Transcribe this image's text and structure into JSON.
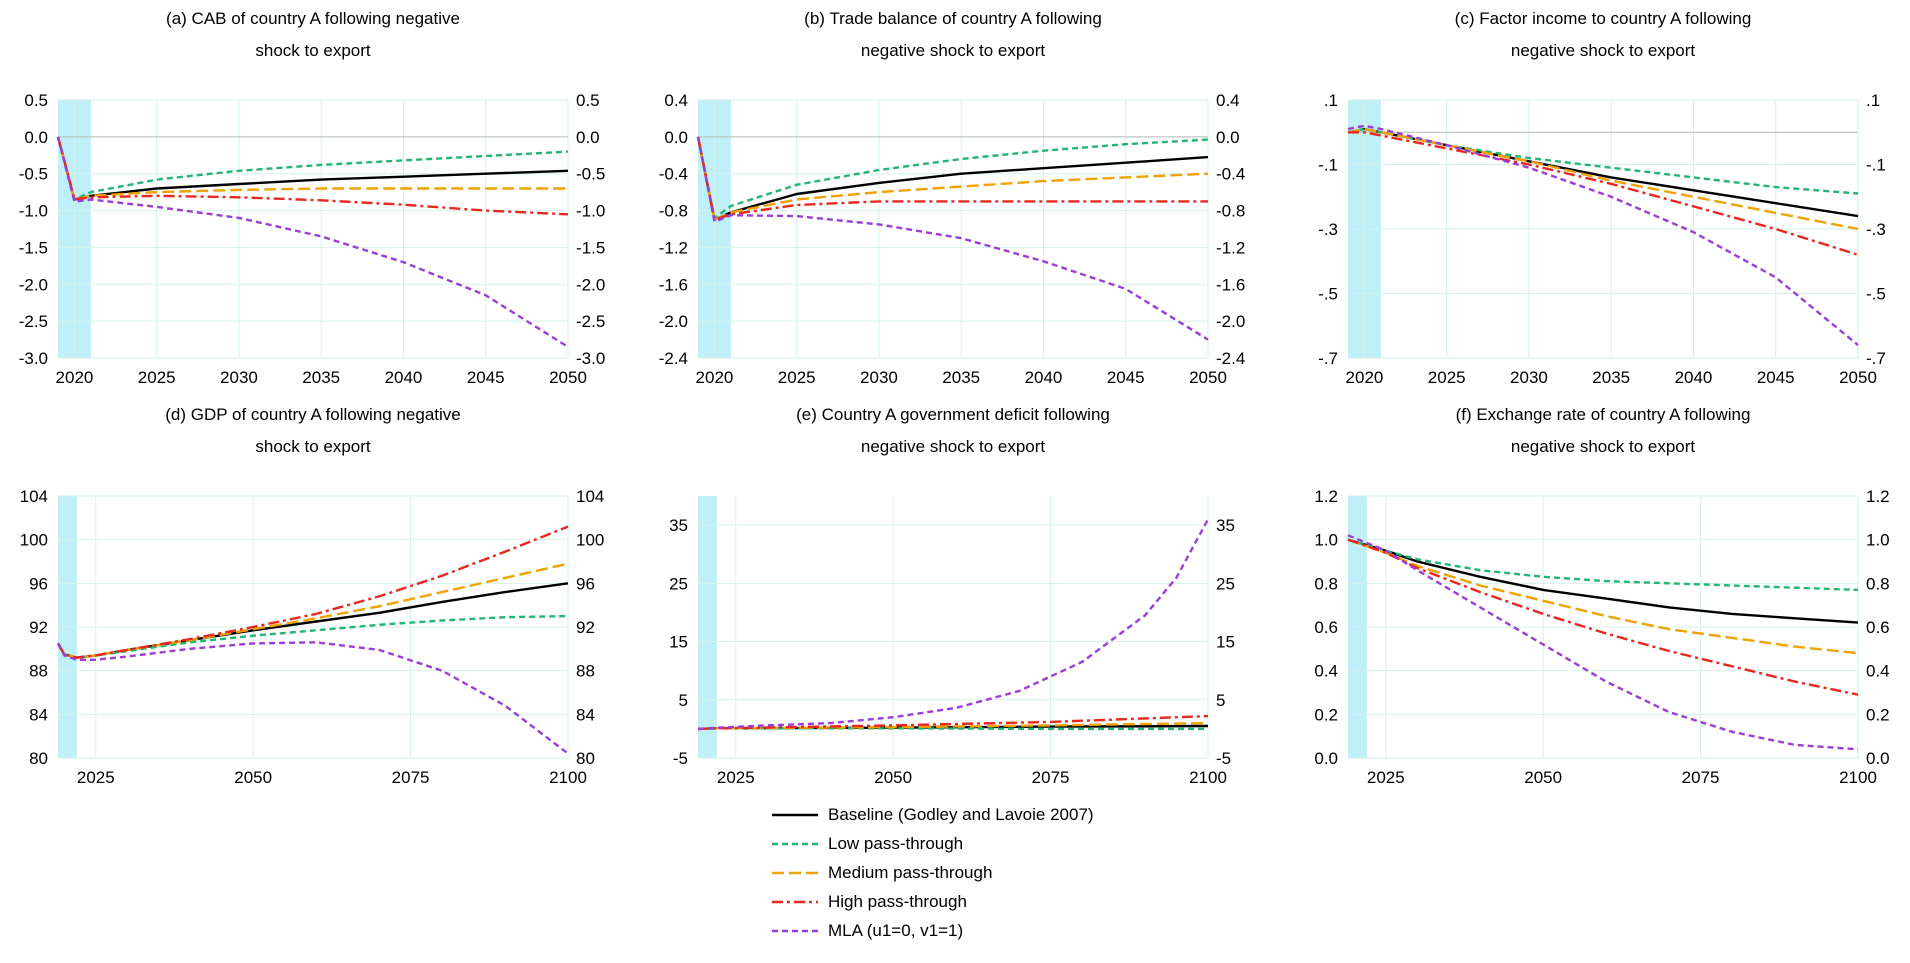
{
  "legend": [
    {
      "name": "Baseline (Godley and Lavoie 2007)",
      "color": "#000000",
      "dash": "solid"
    },
    {
      "name": "Low pass-through",
      "color": "#22b573",
      "dash": "short"
    },
    {
      "name": "Medium pass-through",
      "color": "#f0a202",
      "dash": "long"
    },
    {
      "name": "High pass-through",
      "color": "#e8281e",
      "dash": "dashdot"
    },
    {
      "name": "MLA (u1=0, v1=1)",
      "color": "#9b3dd8",
      "dash": "short"
    }
  ],
  "shading_color": "#bff0f8",
  "chart_data": [
    {
      "type": "line",
      "title": "(a) CAB of country A following negative shock to export",
      "title_lines": [
        "(a) CAB of country A following negative",
        "shock to export"
      ],
      "xlim": [
        2019,
        2050
      ],
      "ylim": [
        -3.0,
        0.5
      ],
      "xticks": [
        "2020",
        "2025",
        "2030",
        "2035",
        "2040",
        "2045",
        "2050"
      ],
      "yticks": [
        "0.5",
        "0.0",
        "-0.5",
        "-1.0",
        "-1.5",
        "-2.0",
        "-2.5",
        "-3.0"
      ],
      "shaded_x": [
        2019,
        2021
      ],
      "zero_line": 0,
      "series": [
        {
          "name": "Baseline (Godley and Lavoie 2007)",
          "x": [
            2019,
            2020,
            2021,
            2025,
            2030,
            2035,
            2040,
            2045,
            2050
          ],
          "y": [
            0.0,
            -0.85,
            -0.8,
            -0.7,
            -0.64,
            -0.58,
            -0.54,
            -0.5,
            -0.46
          ]
        },
        {
          "name": "Low pass-through",
          "x": [
            2019,
            2020,
            2021,
            2025,
            2030,
            2035,
            2040,
            2045,
            2050
          ],
          "y": [
            0.0,
            -0.85,
            -0.75,
            -0.58,
            -0.46,
            -0.38,
            -0.32,
            -0.26,
            -0.2
          ]
        },
        {
          "name": "Medium pass-through",
          "x": [
            2019,
            2020,
            2021,
            2025,
            2030,
            2035,
            2040,
            2045,
            2050
          ],
          "y": [
            0.0,
            -0.85,
            -0.8,
            -0.75,
            -0.72,
            -0.7,
            -0.7,
            -0.7,
            -0.7
          ]
        },
        {
          "name": "High pass-through",
          "x": [
            2019,
            2020,
            2021,
            2025,
            2030,
            2035,
            2040,
            2045,
            2050
          ],
          "y": [
            0.0,
            -0.85,
            -0.82,
            -0.8,
            -0.82,
            -0.86,
            -0.92,
            -1.0,
            -1.05
          ]
        },
        {
          "name": "MLA (u1=0, v1=1)",
          "x": [
            2019,
            2020,
            2021,
            2025,
            2030,
            2035,
            2040,
            2045,
            2050
          ],
          "y": [
            0.0,
            -0.88,
            -0.85,
            -0.95,
            -1.1,
            -1.35,
            -1.7,
            -2.15,
            -2.85
          ]
        }
      ]
    },
    {
      "type": "line",
      "title": "(b) Trade balance of country A following negative shock to export",
      "title_lines": [
        "(b) Trade balance of country A following",
        "negative shock to export"
      ],
      "xlim": [
        2019,
        2050
      ],
      "ylim": [
        -2.4,
        0.4
      ],
      "xticks": [
        "2020",
        "2025",
        "2030",
        "2035",
        "2040",
        "2045",
        "2050"
      ],
      "yticks": [
        "0.4",
        "0.0",
        "-0.4",
        "-0.8",
        "-1.2",
        "-1.6",
        "-2.0",
        "-2.4"
      ],
      "shaded_x": [
        2019,
        2021
      ],
      "zero_line": 0,
      "series": [
        {
          "name": "Baseline (Godley and Lavoie 2007)",
          "x": [
            2019,
            2020,
            2021,
            2025,
            2030,
            2035,
            2040,
            2045,
            2050
          ],
          "y": [
            0.0,
            -0.9,
            -0.82,
            -0.62,
            -0.5,
            -0.4,
            -0.34,
            -0.28,
            -0.22
          ]
        },
        {
          "name": "Low pass-through",
          "x": [
            2019,
            2020,
            2021,
            2025,
            2030,
            2035,
            2040,
            2045,
            2050
          ],
          "y": [
            0.0,
            -0.88,
            -0.75,
            -0.52,
            -0.36,
            -0.24,
            -0.15,
            -0.08,
            -0.03
          ]
        },
        {
          "name": "Medium pass-through",
          "x": [
            2019,
            2020,
            2021,
            2025,
            2030,
            2035,
            2040,
            2045,
            2050
          ],
          "y": [
            0.0,
            -0.9,
            -0.82,
            -0.68,
            -0.6,
            -0.54,
            -0.48,
            -0.44,
            -0.4
          ]
        },
        {
          "name": "High pass-through",
          "x": [
            2019,
            2020,
            2021,
            2025,
            2030,
            2035,
            2040,
            2045,
            2050
          ],
          "y": [
            0.0,
            -0.9,
            -0.84,
            -0.74,
            -0.7,
            -0.7,
            -0.7,
            -0.7,
            -0.7
          ]
        },
        {
          "name": "MLA (u1=0, v1=1)",
          "x": [
            2019,
            2020,
            2021,
            2025,
            2030,
            2035,
            2040,
            2045,
            2050
          ],
          "y": [
            0.0,
            -0.92,
            -0.85,
            -0.86,
            -0.95,
            -1.1,
            -1.35,
            -1.65,
            -2.2
          ]
        }
      ]
    },
    {
      "type": "line",
      "title": "(c) Factor income to country A following negative shock to export",
      "title_lines": [
        "(c) Factor income to country A following",
        "negative shock to export"
      ],
      "xlim": [
        2019,
        2050
      ],
      "ylim": [
        -0.7,
        0.1
      ],
      "xticks": [
        "2020",
        "2025",
        "2030",
        "2035",
        "2040",
        "2045",
        "2050"
      ],
      "yticks": [
        ".1",
        "-.1",
        "-.3",
        "-.5",
        "-.7"
      ],
      "ytick_values": [
        0.1,
        -0.1,
        -0.3,
        -0.5,
        -0.7
      ],
      "shaded_x": [
        2019,
        2021
      ],
      "zero_line": 0,
      "series": [
        {
          "name": "Baseline (Godley and Lavoie 2007)",
          "x": [
            2019,
            2020,
            2021,
            2025,
            2030,
            2035,
            2040,
            2045,
            2050
          ],
          "y": [
            0.0,
            0.01,
            0.0,
            -0.04,
            -0.09,
            -0.14,
            -0.18,
            -0.22,
            -0.26
          ]
        },
        {
          "name": "Low pass-through",
          "x": [
            2019,
            2020,
            2021,
            2025,
            2030,
            2035,
            2040,
            2045,
            2050
          ],
          "y": [
            0.0,
            0.01,
            0.0,
            -0.04,
            -0.08,
            -0.11,
            -0.14,
            -0.17,
            -0.19
          ]
        },
        {
          "name": "Medium pass-through",
          "x": [
            2019,
            2020,
            2021,
            2025,
            2030,
            2035,
            2040,
            2045,
            2050
          ],
          "y": [
            0.0,
            0.01,
            0.0,
            -0.04,
            -0.09,
            -0.15,
            -0.2,
            -0.25,
            -0.3
          ]
        },
        {
          "name": "High pass-through",
          "x": [
            2019,
            2020,
            2021,
            2025,
            2030,
            2035,
            2040,
            2045,
            2050
          ],
          "y": [
            0.0,
            0.0,
            -0.01,
            -0.05,
            -0.1,
            -0.16,
            -0.23,
            -0.3,
            -0.38
          ]
        },
        {
          "name": "MLA (u1=0, v1=1)",
          "x": [
            2019,
            2020,
            2021,
            2025,
            2030,
            2035,
            2040,
            2045,
            2050
          ],
          "y": [
            0.01,
            0.02,
            0.01,
            -0.04,
            -0.11,
            -0.2,
            -0.31,
            -0.45,
            -0.66
          ]
        }
      ]
    },
    {
      "type": "line",
      "title": "(d) GDP of country A following negative shock to export",
      "title_lines": [
        "(d) GDP of country A following negative",
        "shock to export"
      ],
      "xlim": [
        2019,
        2100
      ],
      "ylim": [
        80,
        104
      ],
      "xticks": [
        "2025",
        "2050",
        "2075",
        "2100"
      ],
      "xtick_values": [
        2025,
        2050,
        2075,
        2100
      ],
      "yticks": [
        "104",
        "100",
        "96",
        "92",
        "88",
        "84",
        "80"
      ],
      "shaded_x": [
        2019,
        2022
      ],
      "series": [
        {
          "name": "Baseline (Godley and Lavoie 2007)",
          "x": [
            2019,
            2020,
            2022,
            2025,
            2030,
            2040,
            2050,
            2060,
            2070,
            2080,
            2090,
            2100
          ],
          "y": [
            90.5,
            89.5,
            89.2,
            89.4,
            89.9,
            90.8,
            91.7,
            92.5,
            93.3,
            94.3,
            95.2,
            96.0
          ]
        },
        {
          "name": "Low pass-through",
          "x": [
            2019,
            2020,
            2022,
            2025,
            2030,
            2040,
            2050,
            2060,
            2070,
            2080,
            2090,
            2100
          ],
          "y": [
            90.5,
            89.5,
            89.2,
            89.4,
            89.8,
            90.6,
            91.2,
            91.7,
            92.2,
            92.6,
            92.9,
            93.0
          ]
        },
        {
          "name": "Medium pass-through",
          "x": [
            2019,
            2020,
            2022,
            2025,
            2030,
            2040,
            2050,
            2060,
            2070,
            2080,
            2090,
            2100
          ],
          "y": [
            90.5,
            89.5,
            89.2,
            89.4,
            89.9,
            90.8,
            91.8,
            92.8,
            93.9,
            95.2,
            96.5,
            97.8
          ]
        },
        {
          "name": "High pass-through",
          "x": [
            2019,
            2020,
            2022,
            2025,
            2030,
            2040,
            2050,
            2060,
            2070,
            2080,
            2090,
            2100
          ],
          "y": [
            90.5,
            89.5,
            89.2,
            89.4,
            89.9,
            90.9,
            92.0,
            93.2,
            94.8,
            96.7,
            98.9,
            101.2
          ]
        },
        {
          "name": "MLA (u1=0, v1=1)",
          "x": [
            2019,
            2020,
            2022,
            2025,
            2030,
            2040,
            2050,
            2060,
            2070,
            2080,
            2090,
            2100
          ],
          "y": [
            90.5,
            89.4,
            89.0,
            89.0,
            89.3,
            90.0,
            90.5,
            90.6,
            89.9,
            88.0,
            84.8,
            80.4
          ]
        }
      ]
    },
    {
      "type": "line",
      "title": "(e) Country A government deficit following negative shock to export",
      "title_lines": [
        "(e) Country A government deficit following",
        "negative shock to export"
      ],
      "xlim": [
        2019,
        2100
      ],
      "ylim": [
        -5,
        40
      ],
      "xticks": [
        "2025",
        "2050",
        "2075",
        "2100"
      ],
      "xtick_values": [
        2025,
        2050,
        2075,
        2100
      ],
      "yticks": [
        "35",
        "25",
        "15",
        "5",
        "-5"
      ],
      "ytick_values": [
        35,
        25,
        15,
        5,
        -5
      ],
      "shaded_x": [
        2019,
        2022
      ],
      "series": [
        {
          "name": "Baseline (Godley and Lavoie 2007)",
          "x": [
            2019,
            2022,
            2050,
            2075,
            2100
          ],
          "y": [
            0.0,
            0.1,
            0.2,
            0.4,
            0.5
          ]
        },
        {
          "name": "Low pass-through",
          "x": [
            2019,
            2022,
            2050,
            2075,
            2100
          ],
          "y": [
            0.0,
            0.1,
            0.1,
            0.0,
            0.0
          ]
        },
        {
          "name": "Medium pass-through",
          "x": [
            2019,
            2022,
            2050,
            2075,
            2100
          ],
          "y": [
            0.0,
            0.1,
            0.3,
            0.6,
            1.0
          ]
        },
        {
          "name": "High pass-through",
          "x": [
            2019,
            2022,
            2050,
            2075,
            2100
          ],
          "y": [
            0.0,
            0.1,
            0.6,
            1.2,
            2.2
          ]
        },
        {
          "name": "MLA (u1=0, v1=1)",
          "x": [
            2019,
            2022,
            2030,
            2040,
            2050,
            2060,
            2070,
            2080,
            2090,
            2095,
            2100
          ],
          "y": [
            0.0,
            0.2,
            0.6,
            1.0,
            2.0,
            3.6,
            6.5,
            11.5,
            19.5,
            26.0,
            36.0
          ]
        }
      ]
    },
    {
      "type": "line",
      "title": "(f) Exchange rate of country A following negative shock to export",
      "title_lines": [
        "(f) Exchange rate of country A following",
        "negative shock to export"
      ],
      "xlim": [
        2019,
        2100
      ],
      "ylim": [
        0.0,
        1.2
      ],
      "xticks": [
        "2025",
        "2050",
        "2075",
        "2100"
      ],
      "xtick_values": [
        2025,
        2050,
        2075,
        2100
      ],
      "yticks": [
        "1.2",
        "1.0",
        "0.8",
        "0.6",
        "0.4",
        "0.2",
        "0.0"
      ],
      "shaded_x": [
        2019,
        2022
      ],
      "series": [
        {
          "name": "Baseline (Godley and Lavoie 2007)",
          "x": [
            2019,
            2025,
            2030,
            2040,
            2050,
            2060,
            2070,
            2080,
            2090,
            2100
          ],
          "y": [
            1.0,
            0.95,
            0.9,
            0.83,
            0.77,
            0.73,
            0.69,
            0.66,
            0.64,
            0.62
          ]
        },
        {
          "name": "Low pass-through",
          "x": [
            2019,
            2025,
            2030,
            2040,
            2050,
            2060,
            2070,
            2080,
            2090,
            2100
          ],
          "y": [
            1.0,
            0.95,
            0.91,
            0.86,
            0.83,
            0.81,
            0.8,
            0.79,
            0.78,
            0.77
          ]
        },
        {
          "name": "Medium pass-through",
          "x": [
            2019,
            2025,
            2030,
            2040,
            2050,
            2060,
            2070,
            2080,
            2090,
            2100
          ],
          "y": [
            1.0,
            0.94,
            0.88,
            0.79,
            0.72,
            0.65,
            0.59,
            0.55,
            0.51,
            0.48
          ]
        },
        {
          "name": "High pass-through",
          "x": [
            2019,
            2025,
            2030,
            2040,
            2050,
            2060,
            2070,
            2080,
            2090,
            2100
          ],
          "y": [
            1.0,
            0.94,
            0.87,
            0.76,
            0.66,
            0.57,
            0.49,
            0.42,
            0.35,
            0.29
          ]
        },
        {
          "name": "MLA (u1=0, v1=1)",
          "x": [
            2019,
            2025,
            2030,
            2040,
            2050,
            2060,
            2070,
            2080,
            2090,
            2100
          ],
          "y": [
            1.02,
            0.95,
            0.86,
            0.69,
            0.52,
            0.35,
            0.21,
            0.12,
            0.06,
            0.04
          ]
        }
      ]
    }
  ]
}
